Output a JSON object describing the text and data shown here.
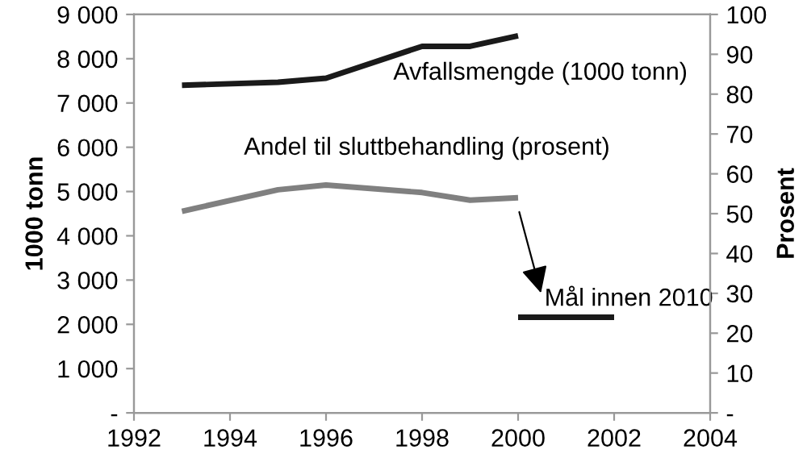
{
  "chart_data": {
    "type": "line",
    "ylabel": "1000 tonn",
    "y2label": "Prosent",
    "x": [
      1993,
      1995,
      1996,
      1998,
      1999,
      2000
    ],
    "series": [
      {
        "name": "Avfallsmengde (1000 tonn)",
        "color": "#1a1a1a",
        "values": [
          7400,
          7470,
          7560,
          8280,
          8280,
          8520
        ]
      },
      {
        "name": "Andel til sluttbehandling (prosent)",
        "color": "#808080",
        "axis": "y2",
        "values": [
          50.6,
          56,
          57.2,
          55.3,
          53.4,
          54
        ]
      },
      {
        "name": "Mål innen 2010",
        "color": "#1a1a1a",
        "axis": "y2",
        "x": [
          2000,
          2002
        ],
        "values": [
          24,
          24
        ]
      }
    ],
    "xlim": [
      1992,
      2004
    ],
    "xticks": [
      1992,
      1994,
      1996,
      1998,
      2000,
      2002,
      2004
    ],
    "ylim": [
      0,
      9000
    ],
    "yticks": [
      {
        "value": 0,
        "label": "-"
      },
      {
        "value": 1000,
        "label": "1 000"
      },
      {
        "value": 2000,
        "label": "2 000"
      },
      {
        "value": 3000,
        "label": "3 000"
      },
      {
        "value": 4000,
        "label": "4 000"
      },
      {
        "value": 5000,
        "label": "5 000"
      },
      {
        "value": 6000,
        "label": "6 000"
      },
      {
        "value": 7000,
        "label": "7 000"
      },
      {
        "value": 8000,
        "label": "8 000"
      },
      {
        "value": 9000,
        "label": "9 000"
      }
    ],
    "y2lim": [
      0,
      100
    ],
    "y2ticks": [
      {
        "value": 0,
        "label": "-"
      },
      10,
      20,
      30,
      40,
      50,
      60,
      70,
      80,
      90,
      100
    ],
    "grid": false,
    "legend": false,
    "marker": "none",
    "line_style": "solid"
  }
}
